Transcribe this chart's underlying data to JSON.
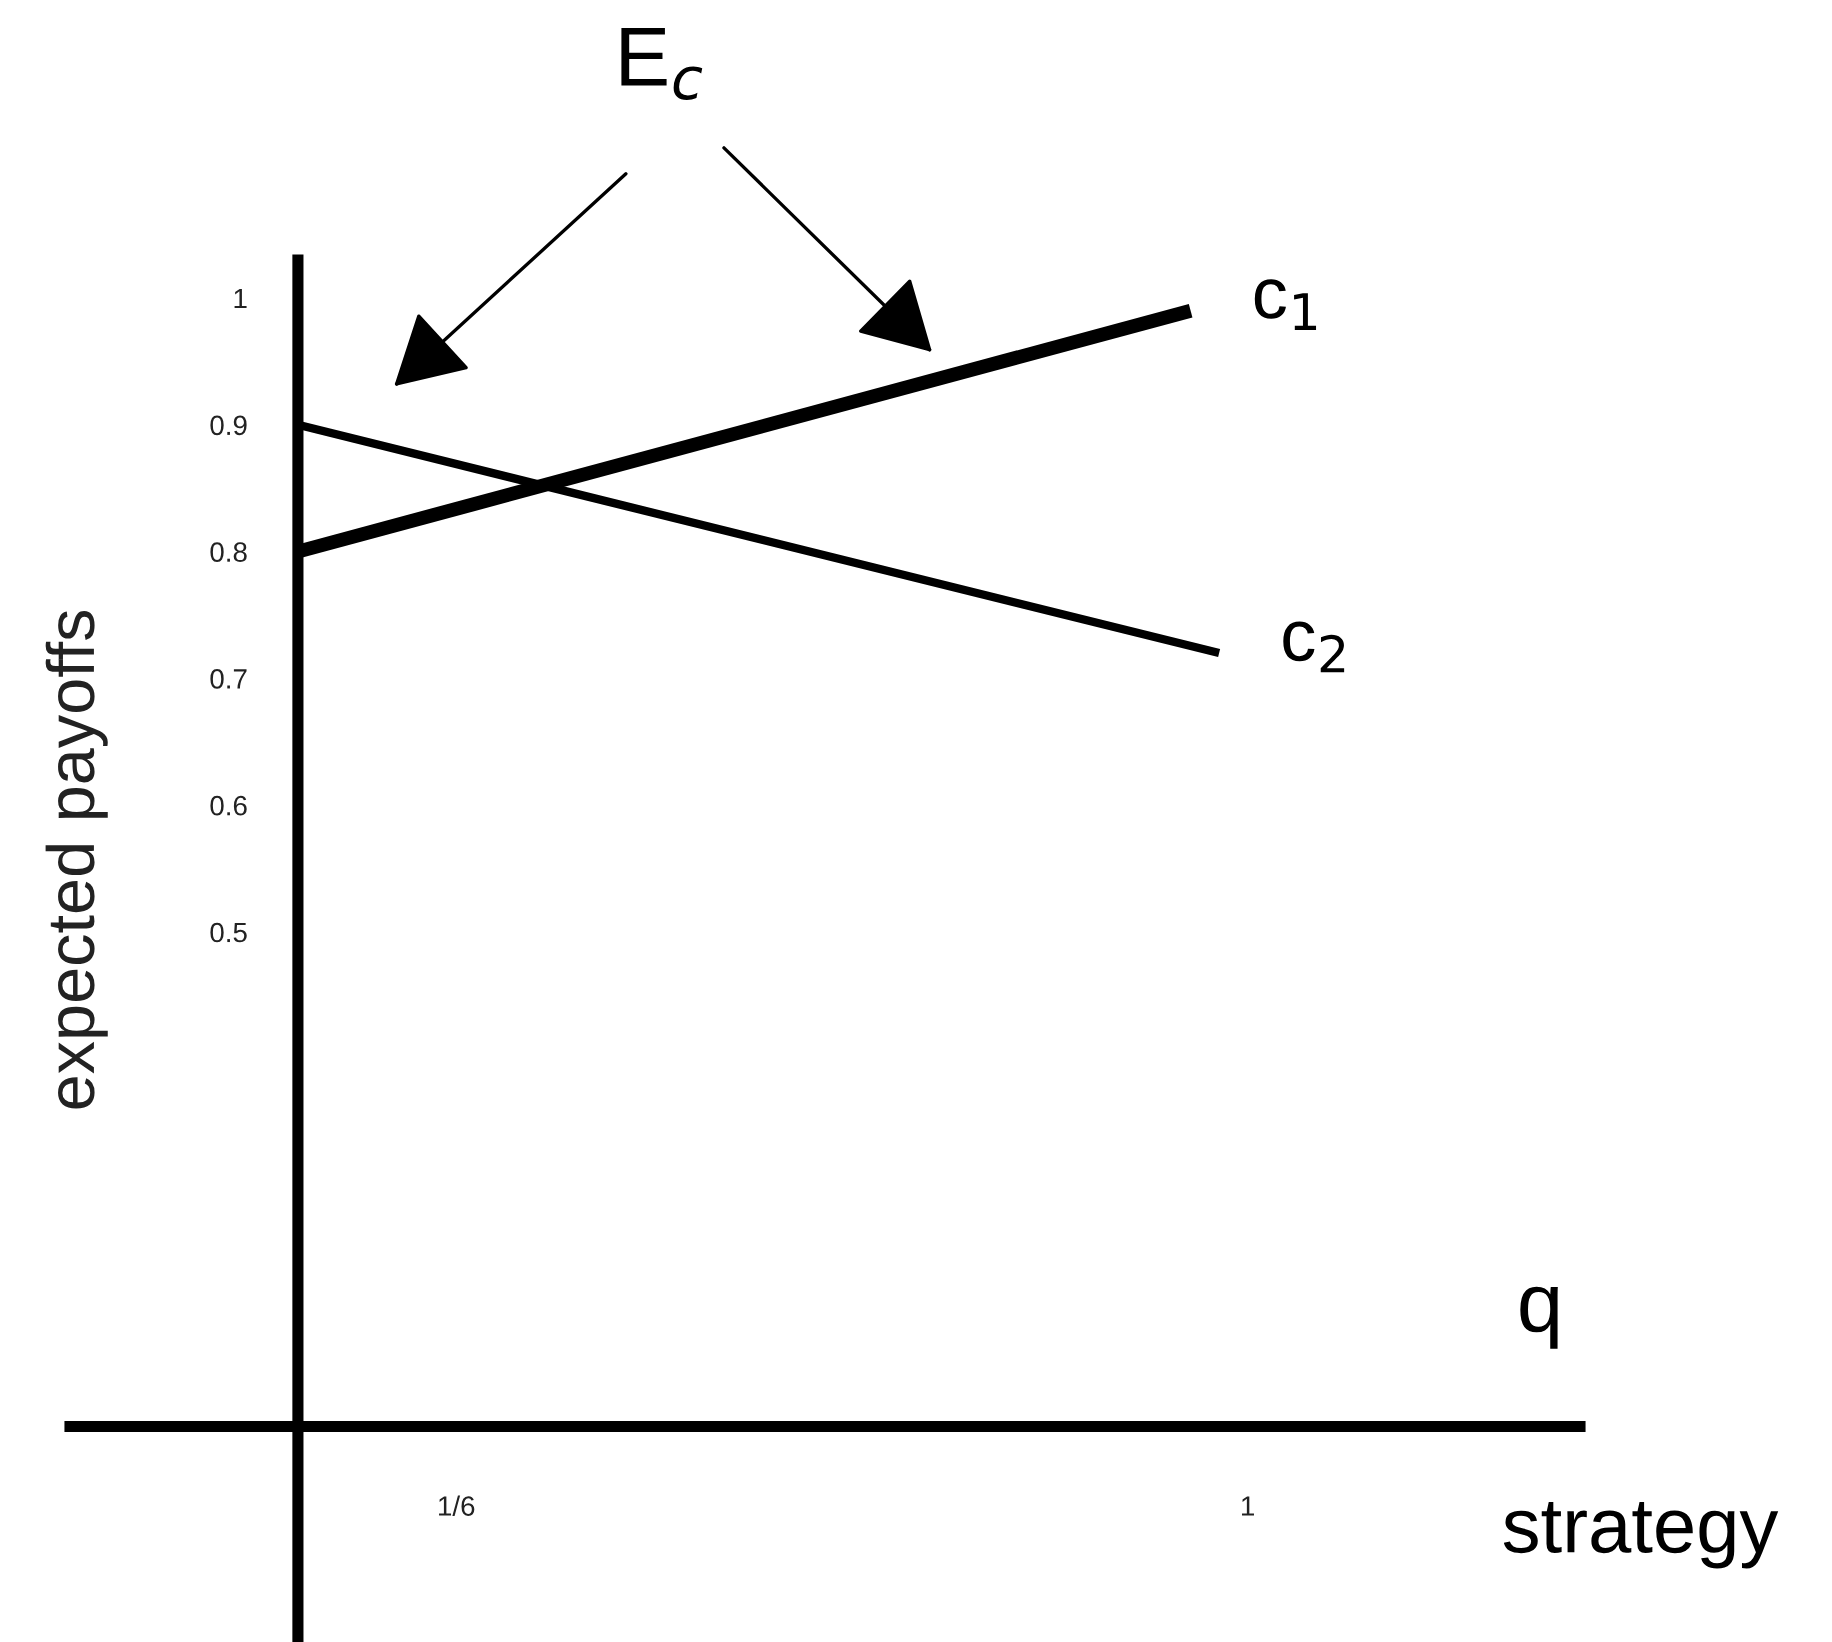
{
  "chart_data": {
    "type": "line",
    "xlabel": "strategy",
    "ylabel": "expected payoffs",
    "annotations": [
      "E$_{c}$",
      "q"
    ],
    "series": [
      {
        "name": "c$_{1}$",
        "color": "#000000",
        "x": [
          0,
          0.94
        ],
        "values": [
          0.8,
          0.99
        ]
      },
      {
        "name": "c$_{2}$",
        "color": "#000000",
        "x": [
          0,
          0.97
        ],
        "values": [
          0.9,
          0.72
        ]
      }
    ],
    "xlim": [
      -0.24,
      1.35
    ],
    "ylim": [
      -0.06,
      1.03
    ],
    "xticks": [
      {
        "value": 0.1667,
        "label": "1/6"
      },
      1
    ],
    "yticks": [
      0.5,
      0.6,
      0.7,
      0.8,
      0.9,
      1
    ],
    "grid": false,
    "legend": false,
    "marker": "none",
    "line_style": "solid"
  }
}
